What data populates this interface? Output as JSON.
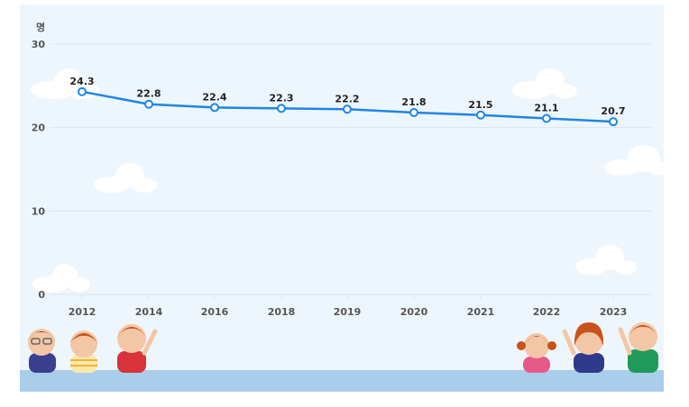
{
  "chart_data": {
    "type": "line",
    "unit_label": "명",
    "categories": [
      "2012",
      "2014",
      "2016",
      "2018",
      "2019",
      "2020",
      "2021",
      "2022",
      "2023"
    ],
    "series": [
      {
        "values": [
          24.3,
          22.8,
          22.4,
          22.3,
          22.2,
          21.8,
          21.5,
          21.1,
          20.7
        ],
        "color": "#1e86e6"
      }
    ],
    "ylim": [
      0,
      30
    ],
    "yticks": [
      "0",
      "10",
      "20",
      "30"
    ],
    "grid": true,
    "colors": {
      "background": "#eef6fd",
      "grid": "#d9e3ec",
      "axis_text": "#555555",
      "value_text": "#222222",
      "ground": "#a9cdeb"
    },
    "decorations": [
      "cloud-icon",
      "children-illustration-left",
      "children-illustration-right"
    ]
  }
}
